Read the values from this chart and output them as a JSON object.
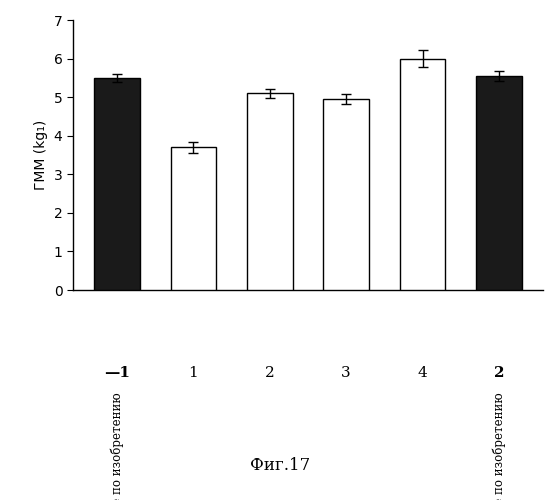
{
  "values": [
    5.5,
    3.7,
    5.1,
    4.95,
    6.0,
    5.55
  ],
  "errors": [
    0.1,
    0.15,
    0.12,
    0.12,
    0.22,
    0.12
  ],
  "colors": [
    "#1a1a1a",
    "#ffffff",
    "#ffffff",
    "#ffffff",
    "#ffffff",
    "#1a1a1a"
  ],
  "edgecolors": [
    "#000000",
    "#000000",
    "#000000",
    "#000000",
    "#000000",
    "#000000"
  ],
  "tick_numbers": [
    "—1",
    "1",
    "2",
    "3",
    "4",
    "2"
  ],
  "tick_numbers_bold": [
    true,
    false,
    false,
    false,
    false,
    true
  ],
  "subtexts": [
    "Не по изобретению",
    "",
    "",
    "",
    "",
    "Не по изобретению"
  ],
  "ylabel": "ГММ (kg₁)",
  "ylim": [
    0,
    7
  ],
  "yticks": [
    0,
    1,
    2,
    3,
    4,
    5,
    6,
    7
  ],
  "figure_label": "Фиг.17",
  "bar_width": 0.6,
  "figsize": [
    5.6,
    5.0
  ],
  "dpi": 100
}
